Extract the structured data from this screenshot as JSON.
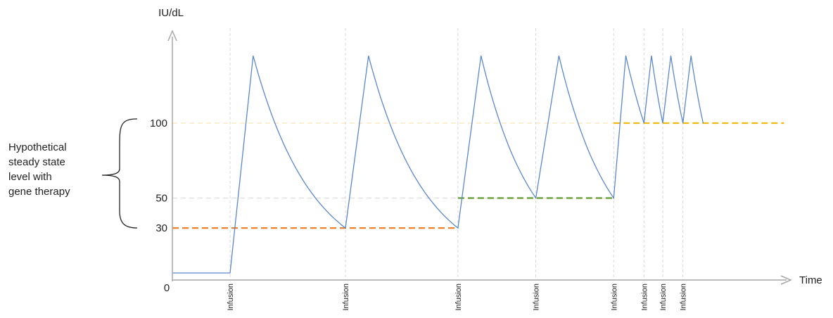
{
  "chart_data": {
    "type": "line",
    "ylabel": "IU/dL",
    "xlabel": "Time",
    "origin_label": "0",
    "y_ticks": [
      {
        "value": 30,
        "label": "30"
      },
      {
        "value": 50,
        "label": "50"
      },
      {
        "value": 100,
        "label": "100"
      }
    ],
    "infusion_label": "Infusion",
    "infusions": [
      {
        "label": "Infusion",
        "t": 20,
        "trough_before": 0,
        "peak": 145,
        "trough_after": 30
      },
      {
        "label": "Infusion",
        "t": 60,
        "trough_before": 30,
        "peak": 145,
        "trough_after": 30
      },
      {
        "label": "Infusion",
        "t": 99,
        "trough_before": 30,
        "peak": 145,
        "trough_after": 50
      },
      {
        "label": "Infusion",
        "t": 126,
        "trough_before": 50,
        "peak": 145,
        "trough_after": 50
      },
      {
        "label": "Infusion",
        "t": 153,
        "trough_before": 50,
        "peak": 145,
        "trough_after": 100
      },
      {
        "label": "Infusion",
        "t": 163.5,
        "trough_before": 100,
        "peak": 145,
        "trough_after": 100
      },
      {
        "label": "Infusion",
        "t": 170,
        "trough_before": 100,
        "peak": 145,
        "trough_after": 100
      },
      {
        "label": "Infusion",
        "t": 177,
        "trough_before": 100,
        "peak": 145,
        "trough_after": 100
      }
    ],
    "baseline_level": 0,
    "trough_segments": [
      {
        "level": 30,
        "from_t": 0,
        "to_t": 99,
        "color": "#f0802a"
      },
      {
        "level": 50,
        "from_t": 99,
        "to_t": 153,
        "color": "#5e9a2e"
      },
      {
        "level": 100,
        "from_t": 153,
        "to_t": 212,
        "color": "#f2b90f"
      }
    ],
    "reference_lines": [
      {
        "level": 50,
        "color": "#dcdcdc"
      },
      {
        "level": 100,
        "color": "#fbe3b4"
      }
    ],
    "annotation": {
      "lines": [
        "Hypothetical",
        "steady state",
        "level with",
        "gene therapy"
      ],
      "spans_levels": [
        30,
        100
      ]
    },
    "line_color": "#5b87cc",
    "infusion_line_color": "#d9d9d9",
    "axis_color": "#a6a6a6",
    "grid": false
  }
}
